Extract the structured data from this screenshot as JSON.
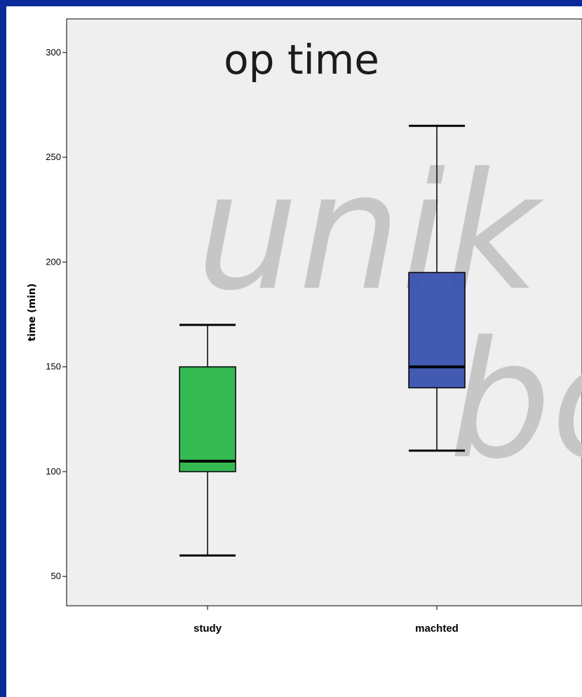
{
  "chart_data": {
    "type": "boxplot",
    "title": "op time",
    "xlabel": "",
    "ylabel": "time (min)",
    "ylim": [
      36,
      316
    ],
    "yticks": [
      50,
      100,
      150,
      200,
      250,
      300
    ],
    "categories": [
      "study",
      "machted"
    ],
    "boxes": [
      {
        "category": "study",
        "min": 60,
        "q1": 100,
        "median": 105,
        "q3": 150,
        "max": 170,
        "color": "#2db84a"
      },
      {
        "category": "machted",
        "min": 110,
        "q1": 140,
        "median": 150,
        "q3": 195,
        "max": 265,
        "color": "#3c55b0"
      }
    ],
    "grid": false,
    "legend": "none"
  },
  "watermark": {
    "line1": "unik",
    "line2": "bo"
  },
  "colors": {
    "frame": "#0b2a9a",
    "plot_bg": "#efefef",
    "page_bg": "#ffffff"
  }
}
